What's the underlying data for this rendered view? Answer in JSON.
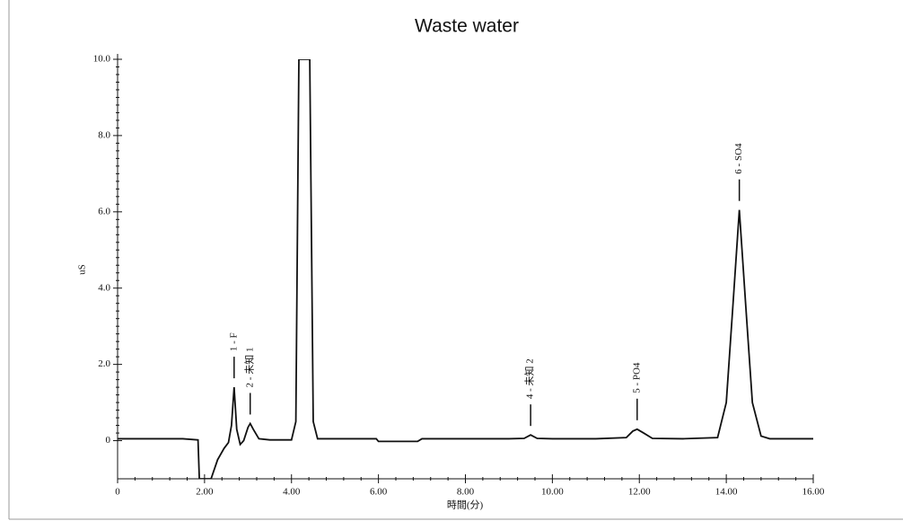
{
  "chart_data": {
    "type": "line",
    "title": "Waste water",
    "x_label": "時間(分)",
    "y_label": "uS",
    "xlim": [
      0,
      16
    ],
    "ylim": [
      -1,
      10
    ],
    "xticks": [
      0,
      {
        "value": 2,
        "label": "2.00"
      },
      {
        "value": 4,
        "label": "4.00"
      },
      {
        "value": 6,
        "label": "6.00"
      },
      {
        "value": 8,
        "label": "8.00"
      },
      {
        "value": 10,
        "label": "10.00"
      },
      {
        "value": 12,
        "label": "12.00"
      },
      {
        "value": 14,
        "label": "14.00"
      },
      {
        "value": 16,
        "label": "16.00"
      }
    ],
    "yticks": [
      0,
      {
        "value": 2,
        "label": "2.0"
      },
      {
        "value": 4,
        "label": "4.0"
      },
      {
        "value": 6,
        "label": "6.0"
      },
      {
        "value": 8,
        "label": "8.0"
      },
      {
        "value": 10,
        "label": "10.0"
      }
    ],
    "series": [
      {
        "color": "#111111",
        "x": [
          0,
          0.5,
          1,
          1.5,
          1.85,
          1.88,
          2.15,
          2.3,
          2.45,
          2.55,
          2.62,
          2.68,
          2.74,
          2.82,
          2.9,
          3.0,
          3.05,
          3.12,
          3.25,
          3.5,
          4.0,
          4.1,
          4.17,
          4.42,
          4.5,
          4.6,
          5,
          5.95,
          6.0,
          6.9,
          7.0,
          8,
          9,
          9.35,
          9.5,
          9.65,
          10,
          11,
          11.7,
          11.85,
          11.95,
          12.1,
          12.3,
          13,
          13.8,
          14.0,
          14.15,
          14.3,
          14.45,
          14.6,
          14.8,
          15,
          16
        ],
        "values": [
          0.05,
          0.05,
          0.05,
          0.05,
          0.02,
          -1,
          -1,
          -0.5,
          -0.2,
          -0.05,
          0.4,
          1.4,
          0.3,
          -0.1,
          0.0,
          0.35,
          0.45,
          0.3,
          0.05,
          0.02,
          0.02,
          0.5,
          10,
          10,
          0.5,
          0.05,
          0.05,
          0.05,
          -0.02,
          -0.02,
          0.05,
          0.05,
          0.05,
          0.06,
          0.15,
          0.06,
          0.05,
          0.05,
          0.08,
          0.25,
          0.3,
          0.2,
          0.06,
          0.05,
          0.08,
          1.0,
          3.5,
          6.05,
          3.5,
          1.0,
          0.12,
          0.05,
          0.05
        ]
      }
    ],
    "annotations": [
      {
        "text": "1 - F",
        "x": 2.68
      },
      {
        "text": "2 - 未知 1",
        "x": 3.05
      },
      {
        "text": "4 - 未知 2",
        "x": 9.5
      },
      {
        "text": "5 - PO4",
        "x": 11.95
      },
      {
        "text": "6 - SO4",
        "x": 14.3
      }
    ]
  }
}
